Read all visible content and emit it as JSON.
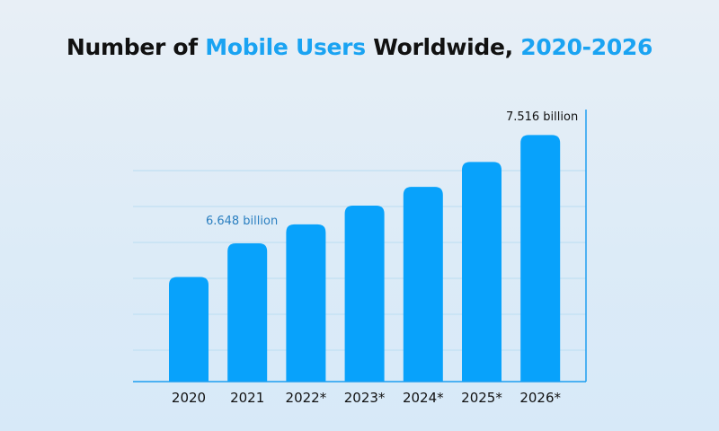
{
  "chart_data": {
    "type": "bar",
    "title": "Number of Mobile Users Worldwide, 2020-2026",
    "title_parts": [
      {
        "text": "Number of ",
        "accent": false
      },
      {
        "text": "Mobile Users",
        "accent": true
      },
      {
        "text": " Worldwide, ",
        "accent": false
      },
      {
        "text": "2020-2026",
        "accent": true
      }
    ],
    "categories": [
      "2020",
      "2021",
      "2022*",
      "2023*",
      "2024*",
      "2025*",
      "2026*"
    ],
    "values": [
      6.378,
      6.648,
      6.8,
      6.95,
      7.1,
      7.3,
      7.516
    ],
    "unit": "billion",
    "annotations": [
      {
        "category": "2021",
        "text": "6.648 billion",
        "color": "#2a7fc0"
      },
      {
        "category": "2026*",
        "text": "7.516 billion",
        "color": "#111111"
      }
    ],
    "xlabel": "",
    "ylabel": "",
    "ylim": [
      5.54,
      7.72
    ],
    "grid": true,
    "legend": "none",
    "colors": {
      "bar": "#08a2fb",
      "grid": "#c5e1f4",
      "axis": "#1e9ef0",
      "accent": "#1aa3f2"
    }
  }
}
